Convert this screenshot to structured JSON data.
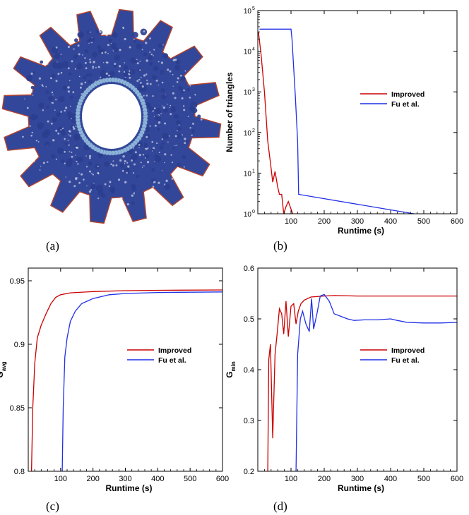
{
  "panels": {
    "a": {
      "caption": "(a)"
    },
    "b": {
      "caption": "(b)"
    },
    "c": {
      "caption": "(c)"
    },
    "d": {
      "caption": "(d)"
    }
  },
  "colors": {
    "improved": "#cc0000",
    "fu": "#1f2fe6",
    "gear_fill": "#33479a",
    "gear_edge": "#b5432b",
    "hole_ring": "#8fb4d9"
  },
  "chart_data": [
    {
      "id": "b",
      "type": "line",
      "xlabel": "Runtime (s)",
      "ylabel": "Number of triangles",
      "xscale": "linear",
      "yscale": "log",
      "xlim": [
        0,
        600
      ],
      "ylim": [
        1,
        100000
      ],
      "xticks": [
        100,
        200,
        300,
        400,
        500,
        600
      ],
      "yticks": [
        {
          "value": 1,
          "base": "10",
          "exp": "0"
        },
        {
          "value": 10,
          "base": "10",
          "exp": "1"
        },
        {
          "value": 100,
          "base": "10",
          "exp": "2"
        },
        {
          "value": 1000,
          "base": "10",
          "exp": "3"
        },
        {
          "value": 10000,
          "base": "10",
          "exp": "4"
        },
        {
          "value": 100000,
          "base": "10",
          "exp": "5"
        }
      ],
      "legend": "center-right",
      "grid": false,
      "series": [
        {
          "name": "Improved",
          "color": "#cc0000",
          "points": [
            [
              2,
              30000
            ],
            [
              10,
              8000
            ],
            [
              20,
              1000
            ],
            [
              30,
              60
            ],
            [
              38,
              18
            ],
            [
              45,
              6
            ],
            [
              52,
              11
            ],
            [
              60,
              4.5
            ],
            [
              65,
              3
            ],
            [
              72,
              3
            ],
            [
              78,
              1
            ],
            [
              85,
              1.5
            ],
            [
              92,
              2
            ],
            [
              100,
              1.3
            ],
            [
              105,
              1
            ]
          ]
        },
        {
          "name": "Fu et al.",
          "color": "#1f2fe6",
          "points": [
            [
              5,
              35000
            ],
            [
              100,
              35000
            ],
            [
              103,
              20000
            ],
            [
              113,
              800
            ],
            [
              120,
              60
            ],
            [
              123,
              3
            ],
            [
              470,
              1
            ]
          ]
        }
      ]
    },
    {
      "id": "c",
      "type": "line",
      "xlabel": "Runtime (s)",
      "ylabel": {
        "main": "G",
        "sub": "avg"
      },
      "xlim": [
        0,
        600
      ],
      "ylim": [
        0.8,
        0.96
      ],
      "xticks": [
        100,
        200,
        300,
        400,
        500,
        600
      ],
      "yticks": [
        "0.8",
        "0.85",
        "0.9",
        "0.95"
      ],
      "legend": "center-right",
      "grid": false,
      "series": [
        {
          "name": "Improved",
          "color": "#cc0000",
          "points": [
            [
              10,
              0.8
            ],
            [
              14,
              0.85
            ],
            [
              20,
              0.885
            ],
            [
              28,
              0.905
            ],
            [
              40,
              0.915
            ],
            [
              55,
              0.924
            ],
            [
              70,
              0.932
            ],
            [
              85,
              0.937
            ],
            [
              100,
              0.939
            ],
            [
              130,
              0.9405
            ],
            [
              200,
              0.9415
            ],
            [
              300,
              0.9422
            ],
            [
              400,
              0.9425
            ],
            [
              600,
              0.9428
            ]
          ]
        },
        {
          "name": "Fu et al.",
          "color": "#1f2fe6",
          "points": [
            [
              105,
              0.8
            ],
            [
              108,
              0.85
            ],
            [
              113,
              0.89
            ],
            [
              120,
              0.905
            ],
            [
              130,
              0.918
            ],
            [
              145,
              0.926
            ],
            [
              165,
              0.932
            ],
            [
              200,
              0.936
            ],
            [
              250,
              0.939
            ],
            [
              300,
              0.94
            ],
            [
              400,
              0.9408
            ],
            [
              600,
              0.9412
            ]
          ]
        }
      ]
    },
    {
      "id": "d",
      "type": "line",
      "xlabel": "Runtime (s)",
      "ylabel": {
        "main": "G",
        "sub": "min"
      },
      "xlim": [
        0,
        600
      ],
      "ylim": [
        0.2,
        0.6
      ],
      "xticks": [
        100,
        200,
        300,
        400,
        500,
        600
      ],
      "yticks": [
        "0.2",
        "0.3",
        "0.4",
        "0.5",
        "0.6"
      ],
      "legend": "center-right",
      "grid": false,
      "series": [
        {
          "name": "Improved",
          "color": "#cc0000",
          "points": [
            [
              30,
              0.2
            ],
            [
              33,
              0.42
            ],
            [
              38,
              0.45
            ],
            [
              45,
              0.265
            ],
            [
              52,
              0.43
            ],
            [
              58,
              0.47
            ],
            [
              65,
              0.52
            ],
            [
              72,
              0.51
            ],
            [
              78,
              0.47
            ],
            [
              85,
              0.535
            ],
            [
              92,
              0.465
            ],
            [
              100,
              0.525
            ],
            [
              108,
              0.53
            ],
            [
              115,
              0.49
            ],
            [
              122,
              0.515
            ],
            [
              130,
              0.53
            ],
            [
              140,
              0.537
            ],
            [
              160,
              0.543
            ],
            [
              200,
              0.545
            ],
            [
              230,
              0.546
            ],
            [
              300,
              0.545
            ],
            [
              400,
              0.545
            ],
            [
              600,
              0.545
            ]
          ]
        },
        {
          "name": "Fu et al.",
          "color": "#1f2fe6",
          "points": [
            [
              115,
              0.2
            ],
            [
              120,
              0.43
            ],
            [
              128,
              0.5
            ],
            [
              135,
              0.515
            ],
            [
              145,
              0.49
            ],
            [
              155,
              0.475
            ],
            [
              162,
              0.54
            ],
            [
              168,
              0.48
            ],
            [
              178,
              0.51
            ],
            [
              188,
              0.545
            ],
            [
              200,
              0.548
            ],
            [
              215,
              0.535
            ],
            [
              230,
              0.51
            ],
            [
              250,
              0.505
            ],
            [
              270,
              0.5
            ],
            [
              290,
              0.497
            ],
            [
              320,
              0.498
            ],
            [
              360,
              0.498
            ],
            [
              400,
              0.5
            ],
            [
              420,
              0.497
            ],
            [
              450,
              0.493
            ],
            [
              500,
              0.492
            ],
            [
              550,
              0.492
            ],
            [
              600,
              0.493
            ]
          ]
        }
      ]
    }
  ]
}
